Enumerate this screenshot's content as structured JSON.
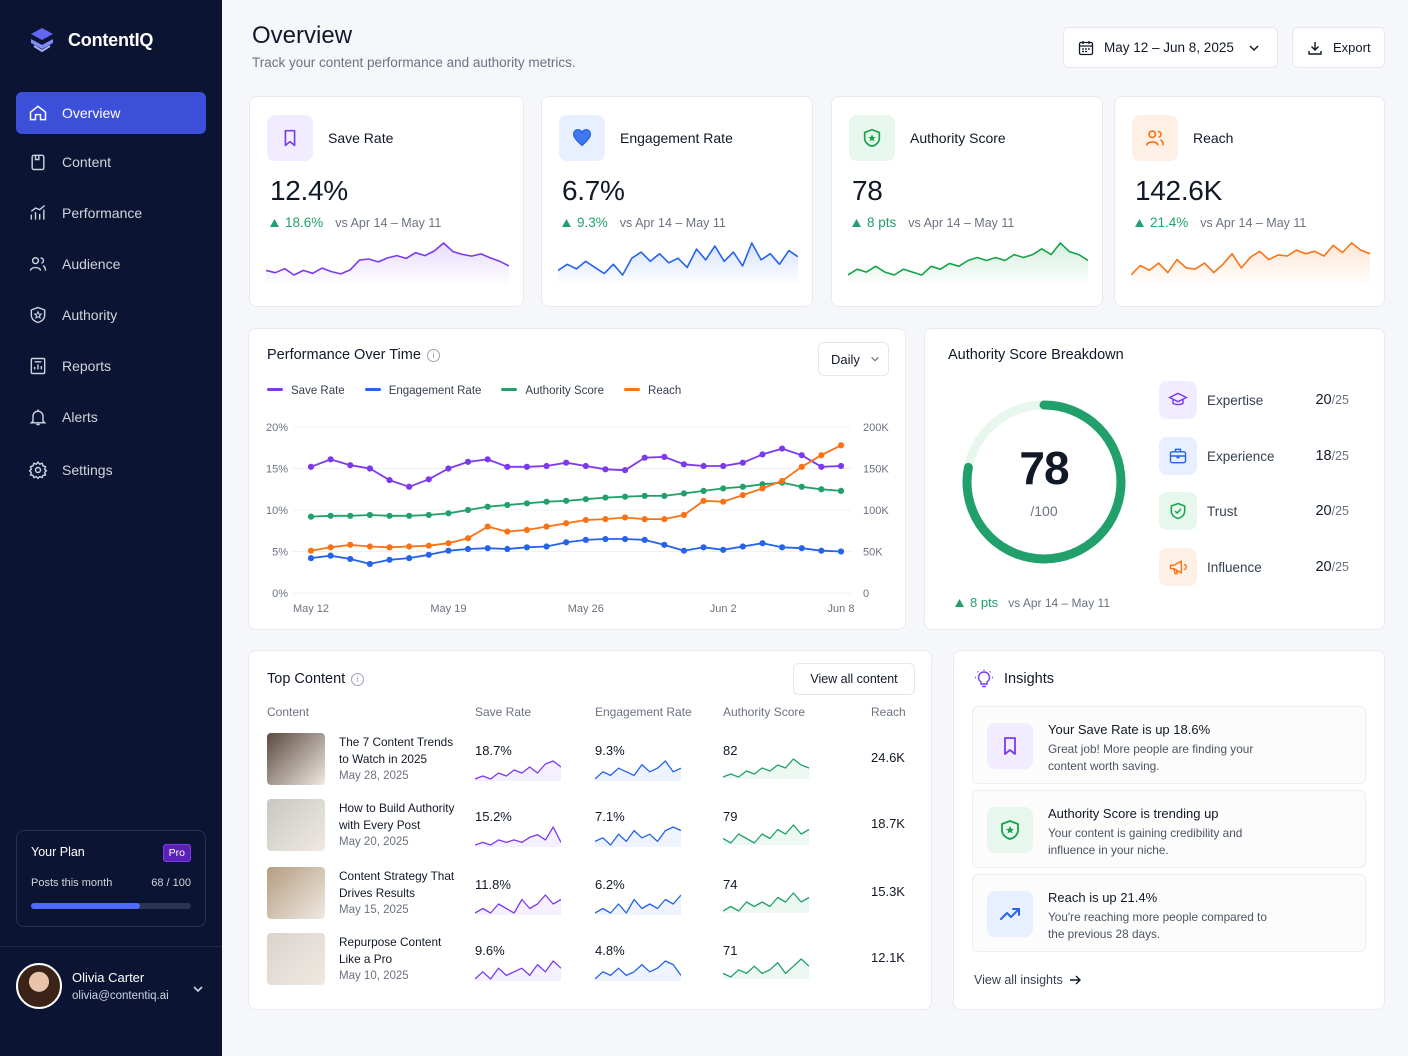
{
  "brand": {
    "name": "ContentIQ"
  },
  "nav": [
    {
      "label": "Overview",
      "icon": "home-icon",
      "active": true
    },
    {
      "label": "Content",
      "icon": "file-icon"
    },
    {
      "label": "Performance",
      "icon": "bar-chart-icon"
    },
    {
      "label": "Audience",
      "icon": "users-icon"
    },
    {
      "label": "Authority",
      "icon": "shield-star-icon"
    },
    {
      "label": "Reports",
      "icon": "report-icon"
    },
    {
      "label": "Alerts",
      "icon": "bell-icon"
    },
    {
      "label": "Settings",
      "icon": "gear-icon"
    }
  ],
  "plan": {
    "title": "Your Plan",
    "badge": "Pro",
    "posts_label": "Posts this month",
    "posts_value": "68 / 100",
    "usage_fraction": 0.68
  },
  "user": {
    "name": "Olivia Carter",
    "email": "olivia@contentiq.ai"
  },
  "header": {
    "title": "Overview",
    "subtitle": "Track your content performance and authority metrics.",
    "date_range": "May 12 – Jun 8, 2025",
    "export_label": "Export"
  },
  "kpis": [
    {
      "label": "Save Rate",
      "value": "12.4%",
      "delta": "18.6%",
      "compare": "vs Apr 14 – May 11",
      "color": "#7c3aed",
      "bg": "#f1ecff",
      "icon": "bookmark-icon",
      "trend": [
        12,
        11.6,
        12.3,
        11.2,
        12,
        11.5,
        12.4,
        11.8,
        11.4,
        12.1,
        13.8,
        14,
        13.5,
        14.2,
        14.6,
        14.1,
        15.1,
        14.6,
        15.4,
        16.8,
        15.3,
        14.8,
        14.5,
        14.9,
        14.2,
        13.6,
        12.8
      ]
    },
    {
      "label": "Engagement Rate",
      "value": "6.7%",
      "delta": "9.3%",
      "compare": "vs Apr 14 – May 11",
      "color": "#2563eb",
      "bg": "#e8efff",
      "icon": "heart-icon",
      "trend": [
        5.8,
        6.2,
        5.9,
        6.4,
        6,
        5.6,
        6.2,
        5.5,
        6.6,
        7,
        6.4,
        6.9,
        6.3,
        6.6,
        6,
        7.2,
        6.5,
        7.4,
        6.4,
        7,
        6.1,
        7.6,
        6.5,
        6.9,
        6.2,
        7.1,
        6.7
      ]
    },
    {
      "label": "Authority Score",
      "value": "78",
      "delta": "8 pts",
      "compare": "vs Apr 14 – May 11",
      "color": "#16a34a",
      "bg": "#e8f7ee",
      "icon": "shield-star-icon",
      "trend": [
        70,
        72,
        71,
        73,
        71,
        70,
        72,
        71,
        70,
        73,
        72,
        74,
        73,
        75,
        76,
        75,
        76,
        75,
        77,
        76,
        77,
        79,
        77,
        81,
        78,
        77,
        75
      ]
    },
    {
      "label": "Reach",
      "value": "142.6K",
      "delta": "21.4%",
      "compare": "vs Apr 14 – May 11",
      "color": "#f97316",
      "bg": "#fff0e6",
      "icon": "users-icon",
      "trend": [
        120,
        128,
        124,
        130,
        122,
        133,
        126,
        125,
        130,
        122,
        129,
        138,
        126,
        135,
        140,
        133,
        137,
        136,
        141,
        138,
        140,
        136,
        145,
        139,
        147,
        141,
        138
      ]
    }
  ],
  "performance": {
    "title": "Performance Over Time",
    "period": "Daily"
  },
  "chart_data": {
    "type": "line",
    "title": "Performance Over Time",
    "x_tick_labels": [
      "May 12",
      "May 19",
      "May 26",
      "Jun 2",
      "Jun 8"
    ],
    "x": [
      "May 12",
      "May 13",
      "May 14",
      "May 15",
      "May 16",
      "May 17",
      "May 18",
      "May 19",
      "May 20",
      "May 21",
      "May 22",
      "May 23",
      "May 24",
      "May 25",
      "May 26",
      "May 27",
      "May 28",
      "May 29",
      "May 30",
      "May 31",
      "Jun 1",
      "Jun 2",
      "Jun 3",
      "Jun 4",
      "Jun 5",
      "Jun 6",
      "Jun 7",
      "Jun 8"
    ],
    "y_left": {
      "ticks": [
        "0%",
        "5%",
        "10%",
        "15%",
        "20%"
      ],
      "range": [
        0,
        20
      ],
      "unit": "%"
    },
    "y_right": {
      "ticks": [
        "0",
        "50K",
        "100K",
        "150K",
        "200K"
      ],
      "range": [
        0,
        200000
      ]
    },
    "series": [
      {
        "name": "Save Rate",
        "axis": "left",
        "color": "#7c3aed",
        "values": [
          15.2,
          16.1,
          15.4,
          15.0,
          13.6,
          12.8,
          13.7,
          15.0,
          15.8,
          16.1,
          15.2,
          15.2,
          15.3,
          15.7,
          15.3,
          14.9,
          14.8,
          16.3,
          16.4,
          15.5,
          15.3,
          15.3,
          15.7,
          16.7,
          17.4,
          16.6,
          15.2,
          15.3
        ]
      },
      {
        "name": "Engagement Rate",
        "axis": "left",
        "color": "#2563eb",
        "values": [
          4.2,
          4.5,
          4.1,
          3.5,
          4.0,
          4.2,
          4.6,
          5.1,
          5.3,
          5.4,
          5.3,
          5.5,
          5.6,
          6.1,
          6.4,
          6.5,
          6.5,
          6.4,
          5.8,
          5.1,
          5.5,
          5.2,
          5.6,
          6.0,
          5.5,
          5.4,
          5.1,
          5.0
        ]
      },
      {
        "name": "Authority Score",
        "axis": "left",
        "color": "#22a06b",
        "values": [
          9.2,
          9.3,
          9.3,
          9.4,
          9.3,
          9.3,
          9.4,
          9.6,
          10.0,
          10.4,
          10.6,
          10.8,
          11.0,
          11.1,
          11.3,
          11.5,
          11.6,
          11.7,
          11.7,
          12.0,
          12.3,
          12.6,
          12.8,
          13.1,
          13.3,
          12.8,
          12.5,
          12.3
        ]
      },
      {
        "name": "Reach",
        "axis": "right",
        "color": "#f97316",
        "values": [
          51000,
          55000,
          58000,
          56000,
          55000,
          56000,
          57000,
          60000,
          66000,
          80000,
          74000,
          76000,
          80000,
          84000,
          88000,
          89000,
          91000,
          89000,
          89000,
          94000,
          111000,
          110000,
          118000,
          126000,
          135000,
          152000,
          166000,
          178000
        ]
      }
    ]
  },
  "breakdown": {
    "title": "Authority Score Breakdown",
    "score": "78",
    "max": "/100",
    "score_value": 78,
    "delta": "8 pts",
    "compare": "vs Apr 14 – May 11",
    "items": [
      {
        "name": "Expertise",
        "score": "20",
        "max": "/25",
        "color": "#7c3aed",
        "bg": "#f1ecff",
        "icon": "graduation-cap-icon"
      },
      {
        "name": "Experience",
        "score": "18",
        "max": "/25",
        "color": "#2563eb",
        "bg": "#e8efff",
        "icon": "briefcase-icon"
      },
      {
        "name": "Trust",
        "score": "20",
        "max": "/25",
        "color": "#16a34a",
        "bg": "#e8f7ee",
        "icon": "shield-check-icon"
      },
      {
        "name": "Influence",
        "score": "20",
        "max": "/25",
        "color": "#f97316",
        "bg": "#fff0e6",
        "icon": "megaphone-icon"
      }
    ]
  },
  "top_content": {
    "title": "Top Content",
    "view_all": "View all content",
    "columns": [
      "Content",
      "Save Rate",
      "Engagement Rate",
      "Authority Score",
      "Reach"
    ],
    "rows": [
      {
        "title": "The 7 Content Trends to Watch in 2025",
        "date": "May 28, 2025",
        "save": "18.7%",
        "engagement": "9.3%",
        "authority": "82",
        "reach": "24.6K",
        "thumb": "#5b4a40",
        "s1": [
          3,
          4,
          3,
          5,
          4,
          6,
          5,
          7,
          5,
          8,
          9,
          7
        ],
        "s2": [
          3,
          5,
          4,
          6,
          5,
          4,
          7,
          5,
          6,
          8,
          5,
          6
        ],
        "s3": [
          2,
          3,
          2,
          4,
          3,
          5,
          4,
          6,
          5,
          8,
          6,
          5
        ]
      },
      {
        "title": "How to Build Authority with Every Post",
        "date": "May 20, 2025",
        "save": "15.2%",
        "engagement": "7.1%",
        "authority": "79",
        "reach": "18.7K",
        "thumb": "#c9c7c3",
        "s1": [
          2,
          3,
          2,
          4,
          3,
          4,
          3,
          5,
          6,
          4,
          9,
          3
        ],
        "s2": [
          3,
          4,
          2,
          5,
          3,
          6,
          4,
          5,
          3,
          6,
          7,
          6
        ],
        "s3": [
          3,
          2,
          4,
          3,
          2,
          4,
          3,
          5,
          4,
          6,
          4,
          5
        ]
      },
      {
        "title": "Content Strategy That Drives Results",
        "date": "May 15, 2025",
        "save": "11.8%",
        "engagement": "6.2%",
        "authority": "74",
        "reach": "15.3K",
        "thumb": "#b59c80",
        "s1": [
          3,
          4,
          3,
          5,
          4,
          3,
          6,
          4,
          5,
          7,
          5,
          6
        ],
        "s2": [
          3,
          4,
          3,
          5,
          3,
          6,
          4,
          5,
          4,
          6,
          5,
          7
        ],
        "s3": [
          3,
          4,
          3,
          5,
          4,
          5,
          4,
          6,
          5,
          7,
          5,
          6
        ]
      },
      {
        "title": "Repurpose Content Like a Pro",
        "date": "May 10, 2025",
        "save": "9.6%",
        "engagement": "4.8%",
        "authority": "71",
        "reach": "12.1K",
        "thumb": "#d8d4cc",
        "s1": [
          3,
          5,
          3,
          6,
          4,
          5,
          6,
          4,
          7,
          5,
          8,
          6
        ],
        "s2": [
          3,
          5,
          4,
          6,
          4,
          5,
          7,
          5,
          6,
          8,
          7,
          4
        ],
        "s3": [
          3,
          2,
          4,
          3,
          5,
          3,
          4,
          6,
          3,
          5,
          7,
          5
        ]
      }
    ]
  },
  "insights": {
    "title": "Insights",
    "footer": "View all insights",
    "items": [
      {
        "title": "Your Save Rate is up 18.6%",
        "desc": "Great job! More people are finding your content worth saving.",
        "color": "#7c3aed",
        "bg": "#f1ecff",
        "icon": "bookmark-icon"
      },
      {
        "title": "Authority Score is trending up",
        "desc": "Your content is gaining credibility and influence in your niche.",
        "color": "#16a34a",
        "bg": "#e8f7ee",
        "icon": "shield-star-icon"
      },
      {
        "title": "Reach is up 21.4%",
        "desc": "You're reaching more people compared to the previous 28 days.",
        "color": "#2563eb",
        "bg": "#e8efff",
        "icon": "trend-up-icon"
      }
    ]
  }
}
